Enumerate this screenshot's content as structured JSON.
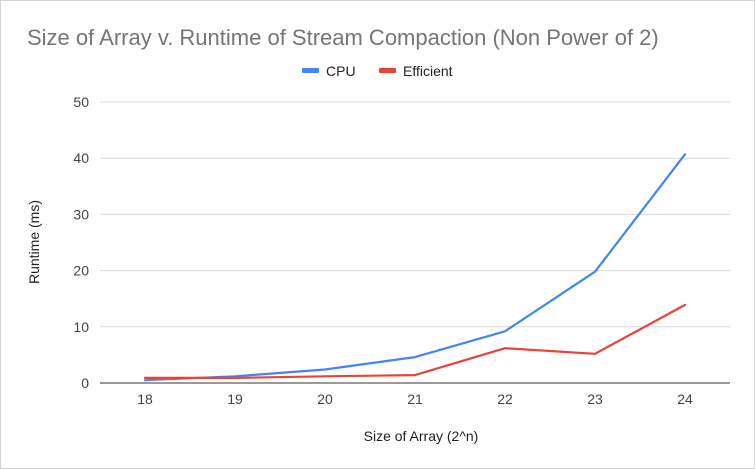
{
  "chart_data": {
    "type": "line",
    "title": "Size of Array v. Runtime of Stream Compaction (Non Power of 2)",
    "xlabel": "Size of Array (2^n)",
    "ylabel": "Runtime (ms)",
    "categories": [
      "18",
      "19",
      "20",
      "21",
      "22",
      "23",
      "24"
    ],
    "ylim": [
      0,
      50
    ],
    "yticks": [
      "0",
      "10",
      "20",
      "30",
      "40",
      "50"
    ],
    "grid": true,
    "legend_position": "top",
    "series": [
      {
        "name": "CPU",
        "color": "#4285f4",
        "values": [
          0.5,
          1.2,
          2.4,
          4.6,
          9.2,
          19.8,
          40.7
        ]
      },
      {
        "name": "Efficient",
        "color": "#ea4335",
        "values": [
          0.9,
          0.9,
          1.2,
          1.4,
          6.2,
          5.2,
          13.9
        ]
      }
    ]
  }
}
